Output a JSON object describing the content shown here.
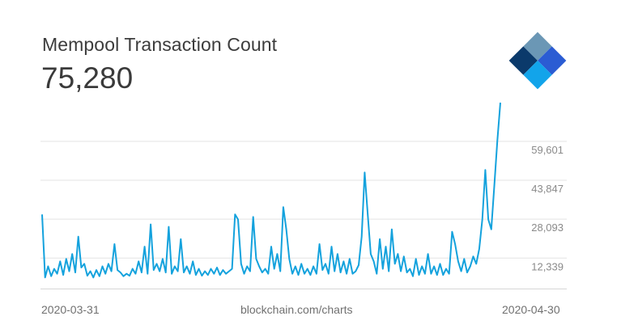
{
  "header": {
    "title": "Mempool Transaction Count",
    "current_value": "75,280"
  },
  "footer": {
    "start_date": "2020-03-31",
    "source": "blockchain.com/charts",
    "end_date": "2020-04-30"
  },
  "logo": {
    "icon": "blockchain-logo-icon",
    "colors": [
      "#0b3a6b",
      "#6b97b5",
      "#2b5cd3",
      "#12a4ea",
      "#a9d5f0"
    ]
  },
  "chart_data": {
    "type": "line",
    "title": "Mempool Transaction Count",
    "xlabel": "",
    "ylabel": "",
    "x_start": "2020-03-31",
    "x_end": "2020-04-30",
    "y_ticks": [
      12339,
      28093,
      43847,
      59601
    ],
    "y_tick_labels": [
      "12,339",
      "28,093",
      "43,847",
      "59,601"
    ],
    "ylim": [
      0,
      75280
    ],
    "grid": true,
    "line_color": "#14a2dd",
    "series": [
      {
        "values": [
          30000,
          4500,
          9000,
          5000,
          8000,
          6000,
          11000,
          5500,
          12000,
          7000,
          14000,
          6500,
          21000,
          8500,
          10000,
          5200,
          7000,
          4500,
          7500,
          5000,
          9000,
          6000,
          10000,
          7000,
          18000,
          7500,
          6500,
          5000,
          6000,
          5200,
          8000,
          6000,
          11000,
          6500,
          17000,
          6000,
          26000,
          7500,
          10000,
          7000,
          12000,
          6500,
          25000,
          6000,
          9000,
          7000,
          20000,
          6500,
          9000,
          6000,
          11000,
          5500,
          8000,
          5200,
          7000,
          5500,
          8000,
          6000,
          8500,
          5500,
          7500,
          6000,
          7000,
          8000,
          30000,
          28000,
          10000,
          6000,
          9000,
          7000,
          29000,
          12000,
          9000,
          6500,
          8000,
          6000,
          17000,
          8000,
          14000,
          7000,
          33000,
          24000,
          12000,
          6000,
          9000,
          5500,
          10000,
          6000,
          8000,
          5500,
          9000,
          6000,
          18000,
          7500,
          10000,
          6000,
          17000,
          7000,
          14000,
          6500,
          11000,
          6000,
          12000,
          6000,
          7000,
          9500,
          21000,
          47000,
          30000,
          14000,
          11000,
          6000,
          20000,
          8000,
          17000,
          7000,
          24000,
          10000,
          14000,
          7000,
          13000,
          6500,
          8000,
          5000,
          12000,
          5500,
          9000,
          6000,
          14000,
          6000,
          9000,
          5500,
          10000,
          5500,
          8000,
          6000,
          23000,
          18000,
          11000,
          7000,
          12000,
          6500,
          9000,
          13000,
          10000,
          16000,
          28000,
          48000,
          28000,
          24000,
          42000,
          60000,
          75280
        ]
      }
    ]
  }
}
